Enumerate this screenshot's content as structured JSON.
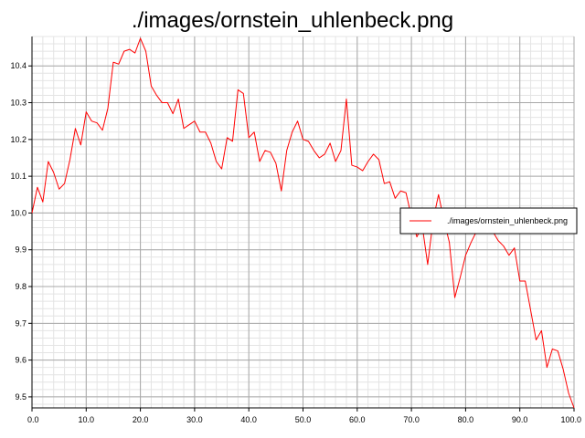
{
  "chart_data": {
    "type": "line",
    "title": "./images/ornstein_uhlenbeck.png",
    "xlabel": "",
    "ylabel": "",
    "xlim": [
      0,
      100
    ],
    "ylim": [
      9.47,
      10.48
    ],
    "x_ticks": [
      0,
      10,
      20,
      30,
      40,
      50,
      60,
      70,
      80,
      90,
      100
    ],
    "x_tick_labels": [
      "0.0",
      "10.0",
      "20.0",
      "30.0",
      "40.0",
      "50.0",
      "60.0",
      "70.0",
      "80.0",
      "90.0",
      "100.0"
    ],
    "y_ticks": [
      9.5,
      9.6,
      9.7,
      9.8,
      9.9,
      10.0,
      10.1,
      10.2,
      10.3,
      10.4
    ],
    "y_tick_labels": [
      "9.5",
      "9.6",
      "9.7",
      "9.8",
      "9.9",
      "10.0",
      "10.1",
      "10.2",
      "10.3",
      "10.4"
    ],
    "grid": true,
    "legend_position": "right",
    "series": [
      {
        "name": "./images/ornstein_uhlenbeck.png",
        "color": "#ff0000",
        "x": [
          0,
          1,
          2,
          3,
          4,
          5,
          6,
          7,
          8,
          9,
          10,
          11,
          12,
          13,
          14,
          15,
          16,
          17,
          18,
          19,
          20,
          21,
          22,
          23,
          24,
          25,
          26,
          27,
          28,
          29,
          30,
          31,
          32,
          33,
          34,
          35,
          36,
          37,
          38,
          39,
          40,
          41,
          42,
          43,
          44,
          45,
          46,
          47,
          48,
          49,
          50,
          51,
          52,
          53,
          54,
          55,
          56,
          57,
          58,
          59,
          60,
          61,
          62,
          63,
          64,
          65,
          66,
          67,
          68,
          69,
          70,
          71,
          72,
          73,
          74,
          75,
          76,
          77,
          78,
          79,
          80,
          81,
          82,
          83,
          84,
          85,
          86,
          87,
          88,
          89,
          90,
          91,
          92,
          93,
          94,
          95,
          96,
          97,
          98,
          99,
          100
        ],
        "y": [
          10.0,
          10.07,
          10.03,
          10.14,
          10.11,
          10.065,
          10.08,
          10.145,
          10.23,
          10.185,
          10.275,
          10.25,
          10.245,
          10.225,
          10.285,
          10.41,
          10.405,
          10.44,
          10.445,
          10.435,
          10.475,
          10.44,
          10.345,
          10.32,
          10.3,
          10.3,
          10.27,
          10.31,
          10.23,
          10.24,
          10.25,
          10.22,
          10.22,
          10.19,
          10.14,
          10.12,
          10.205,
          10.195,
          10.335,
          10.325,
          10.205,
          10.22,
          10.14,
          10.17,
          10.165,
          10.135,
          10.06,
          10.17,
          10.22,
          10.25,
          10.2,
          10.195,
          10.17,
          10.15,
          10.16,
          10.19,
          10.14,
          10.17,
          10.31,
          10.13,
          10.125,
          10.115,
          10.14,
          10.16,
          10.145,
          10.08,
          10.085,
          10.04,
          10.06,
          10.055,
          9.99,
          9.935,
          9.965,
          9.86,
          9.98,
          10.05,
          9.98,
          9.92,
          9.77,
          9.825,
          9.885,
          9.92,
          9.95,
          9.945,
          9.96,
          9.95,
          9.925,
          9.91,
          9.885,
          9.905,
          9.815,
          9.815,
          9.735,
          9.655,
          9.68,
          9.58,
          9.63,
          9.625,
          9.575,
          9.51,
          9.47
        ]
      }
    ]
  }
}
